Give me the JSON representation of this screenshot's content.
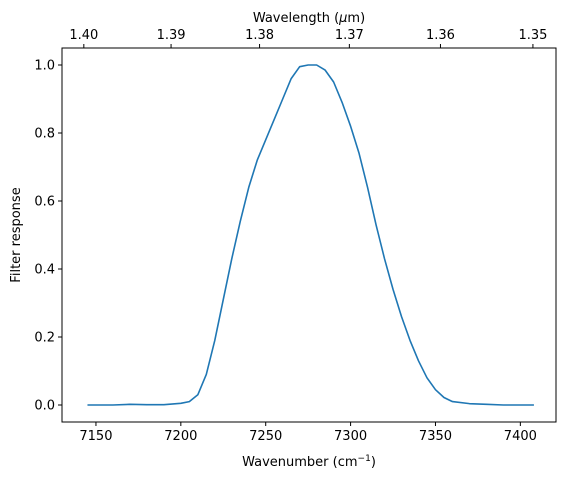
{
  "chart_data": {
    "type": "line",
    "xlabel": "Wavenumber (cm",
    "xlabel_sup": "−1",
    "xlabel_tail": ")",
    "ylabel": "Filter response",
    "top_axis_label": "Wavelength (",
    "top_axis_label_mu": "μ",
    "top_axis_label_tail": "m)",
    "xlim": [
      7130,
      7421
    ],
    "ylim": [
      -0.05,
      1.05
    ],
    "x_ticks": [
      7150,
      7200,
      7250,
      7300,
      7350,
      7400
    ],
    "y_ticks": [
      0.0,
      0.2,
      0.4,
      0.6,
      0.8,
      1.0
    ],
    "top_ticks": [
      1.4,
      1.39,
      1.38,
      1.37,
      1.36,
      1.35
    ],
    "grid": false,
    "colors": {
      "line": "#1f77b4",
      "axes": "#000000"
    },
    "series": [
      {
        "x": [
          7145,
          7160,
          7170,
          7180,
          7190,
          7200,
          7205,
          7210,
          7215,
          7220,
          7225,
          7230,
          7235,
          7240,
          7245,
          7250,
          7255,
          7260,
          7265,
          7270,
          7275,
          7280,
          7285,
          7290,
          7295,
          7300,
          7305,
          7310,
          7315,
          7320,
          7325,
          7330,
          7335,
          7340,
          7345,
          7350,
          7355,
          7360,
          7370,
          7380,
          7390,
          7408
        ],
        "y": [
          0.0,
          0.0,
          0.002,
          0.001,
          0.001,
          0.005,
          0.01,
          0.03,
          0.09,
          0.19,
          0.31,
          0.43,
          0.54,
          0.64,
          0.72,
          0.78,
          0.84,
          0.9,
          0.96,
          0.995,
          1.0,
          1.0,
          0.985,
          0.95,
          0.89,
          0.82,
          0.74,
          0.64,
          0.53,
          0.43,
          0.34,
          0.26,
          0.19,
          0.13,
          0.08,
          0.045,
          0.022,
          0.01,
          0.004,
          0.002,
          0.0,
          0.0
        ]
      }
    ]
  }
}
